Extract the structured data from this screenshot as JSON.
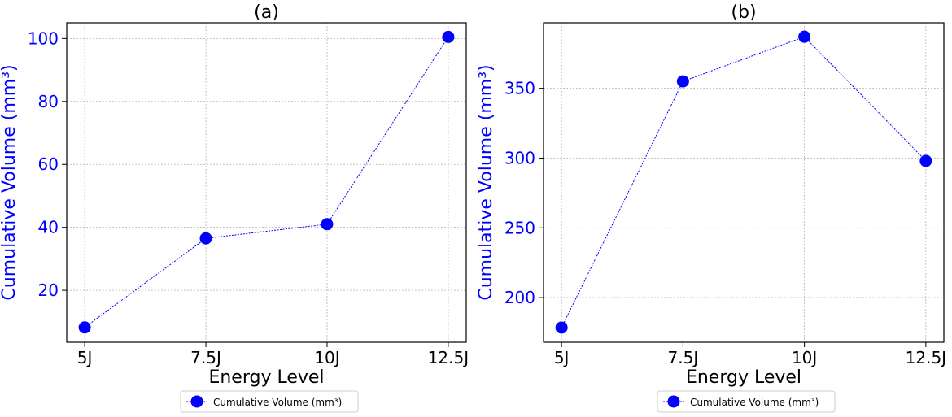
{
  "colors": {
    "series": "#0000ff",
    "axis_label": "#0000ff",
    "text": "#000000",
    "grid": "#b0b0b0"
  },
  "chart_data": [
    {
      "type": "line",
      "title": "(a)",
      "xlabel": "Energy Level",
      "ylabel": "Cumulative Volume (mm³)",
      "categories": [
        "5J",
        "7.5J",
        "10J",
        "12.5J"
      ],
      "series": [
        {
          "name": "Cumulative Volume (mm³)",
          "values": [
            8.2,
            36.5,
            41.0,
            100.5
          ],
          "color": "#0000ff",
          "marker": "circle",
          "linestyle": "dotted"
        }
      ],
      "ylim": [
        3.5,
        105
      ],
      "yticks": [
        20,
        40,
        60,
        80,
        100
      ],
      "grid": true,
      "legend": {
        "position": "below-center"
      }
    },
    {
      "type": "line",
      "title": "(b)",
      "xlabel": "Energy Level",
      "ylabel": "Cumulative Volume (mm³)",
      "categories": [
        "5J",
        "7.5J",
        "10J",
        "12.5J"
      ],
      "series": [
        {
          "name": "Cumulative Volume (mm³)",
          "values": [
            178.5,
            355,
            387,
            298
          ],
          "color": "#0000ff",
          "marker": "circle",
          "linestyle": "dotted"
        }
      ],
      "ylim": [
        168,
        397
      ],
      "yticks": [
        200,
        250,
        300,
        350
      ],
      "grid": true,
      "legend": {
        "position": "below-center"
      }
    }
  ]
}
